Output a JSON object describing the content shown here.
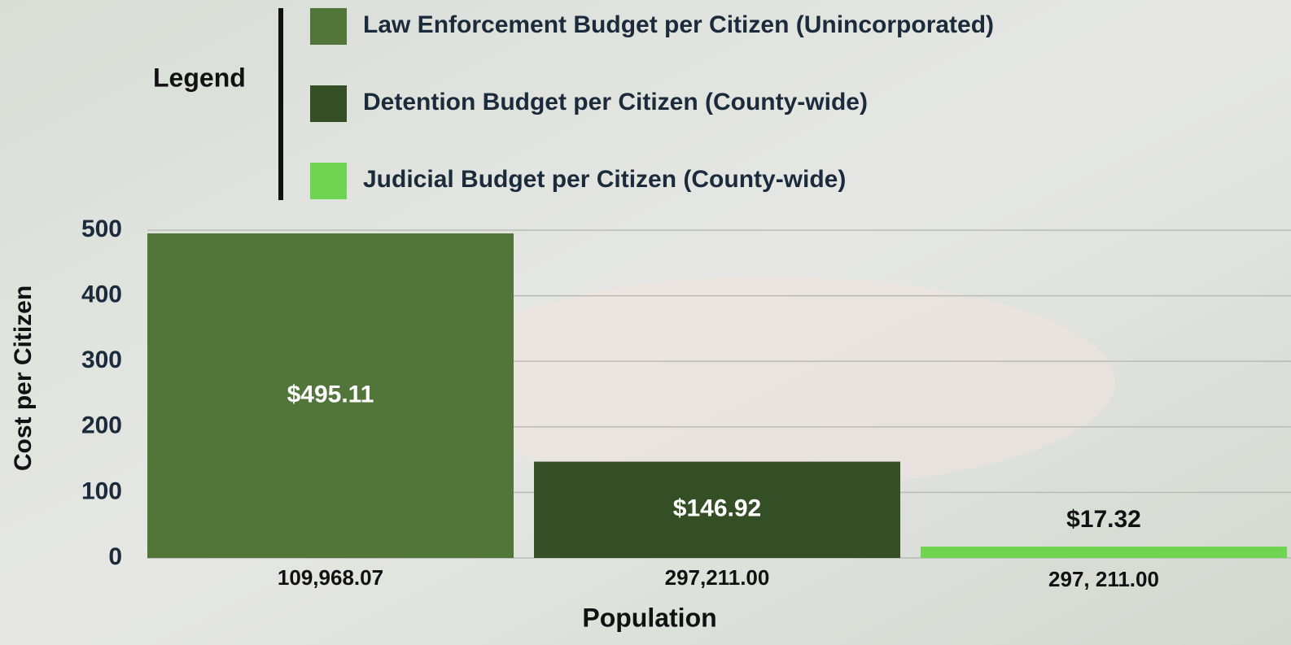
{
  "chart_data": {
    "type": "bar",
    "legend_title": "Legend",
    "legend_labels": [
      "Law Enforcement Budget per Citizen (Unincorporated)",
      "Detention Budget per Citizen (County-wide)",
      "Judicial Budget per Citizen (County-wide)"
    ],
    "categories": [
      "109,968.07",
      "297,211.00",
      "297, 211.00"
    ],
    "values": [
      495.11,
      146.92,
      17.32
    ],
    "value_labels": [
      "$495.11",
      "$146.92",
      "$17.32"
    ],
    "colors": [
      "#52753a",
      "#344f26",
      "#6fd452"
    ],
    "x_label": "Population",
    "y_label": "Cost per Citizen",
    "ylim": [
      0,
      500
    ],
    "yticks": [
      0,
      100,
      200,
      300,
      400,
      500
    ],
    "grid": true
  }
}
